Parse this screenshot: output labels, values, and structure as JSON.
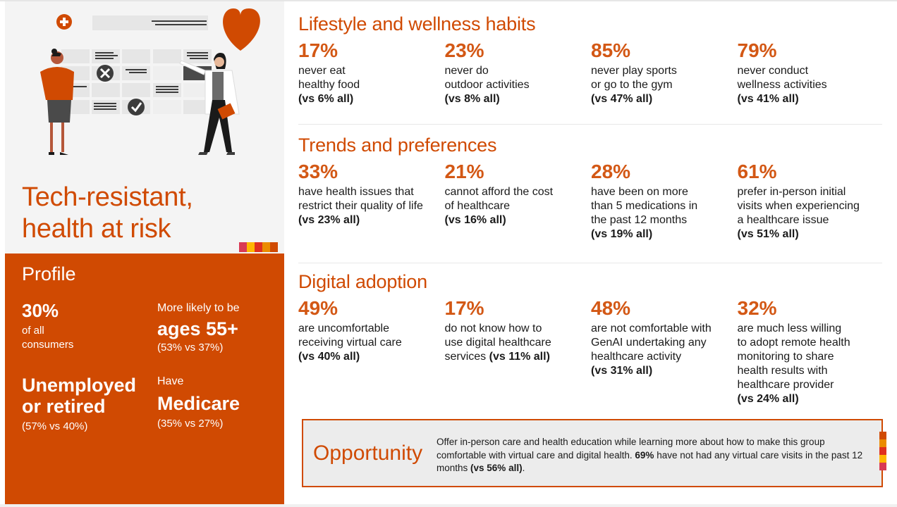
{
  "persona": {
    "title_line1": "Tech-resistant,",
    "title_line2": "health at risk",
    "illustration": "doctor-patient-calendar-illustration"
  },
  "profile": {
    "title": "Profile",
    "share": {
      "value": "30%",
      "line1": "of all",
      "line2": "consumers"
    },
    "age": {
      "lead": "More likely to be",
      "value": "ages 55+",
      "compare": "(53% vs 37%)"
    },
    "employment": {
      "line1": "Unemployed",
      "line2": "or retired",
      "compare": "(57% vs 40%)"
    },
    "insurance": {
      "lead": "Have",
      "value": "Medicare",
      "compare": "(35% vs 27%)"
    }
  },
  "colors": {
    "brand_orange": "#d04a02",
    "accent_pink": "#d93954",
    "accent_yellow": "#ffb600",
    "accent_red": "#e0301e",
    "accent_amber": "#eb8c00",
    "panel_gray": "#f4f4f4"
  },
  "sections": [
    {
      "title": "Lifestyle and wellness habits",
      "stats": [
        {
          "pct": "17%",
          "lines": [
            "never eat",
            "healthy food"
          ],
          "compare": "(vs 6% all)"
        },
        {
          "pct": "23%",
          "lines": [
            "never do",
            "outdoor activities"
          ],
          "compare": "(vs 8% all)"
        },
        {
          "pct": "85%",
          "lines": [
            "never play sports",
            "or go to the gym"
          ],
          "compare": "(vs 47% all)"
        },
        {
          "pct": "79%",
          "lines": [
            "never conduct",
            "wellness activities"
          ],
          "compare": "(vs 41% all)"
        }
      ]
    },
    {
      "title": "Trends and preferences",
      "stats": [
        {
          "pct": "33%",
          "lines": [
            "have health issues that",
            "restrict their quality of life"
          ],
          "compare": "(vs 23% all)"
        },
        {
          "pct": "21%",
          "lines": [
            "cannot afford the cost",
            "of healthcare"
          ],
          "compare": "(vs 16% all)"
        },
        {
          "pct": "28%",
          "lines": [
            "have been on more",
            "than 5 medications in",
            "the past 12 months"
          ],
          "compare": "(vs 19% all)"
        },
        {
          "pct": "61%",
          "lines": [
            "prefer in-person initial",
            "visits when experiencing",
            "a healthcare issue"
          ],
          "compare": "(vs 51% all)"
        }
      ]
    },
    {
      "title": "Digital adoption",
      "stats": [
        {
          "pct": "49%",
          "lines": [
            "are uncomfortable",
            "receiving virtual care"
          ],
          "compare": "(vs 40% all)"
        },
        {
          "pct": "17%",
          "lines": [
            "do not know how to",
            "use digital healthcare"
          ],
          "tail": "services ",
          "compare": "(vs 11% all)"
        },
        {
          "pct": "48%",
          "lines": [
            "are not comfortable with",
            "GenAI undertaking any",
            "healthcare activity"
          ],
          "compare": "(vs 31% all)"
        },
        {
          "pct": "32%",
          "lines": [
            "are much less willing",
            "to adopt remote health",
            "monitoring to share",
            "health results with",
            "healthcare provider"
          ],
          "compare": "(vs 24% all)"
        }
      ]
    }
  ],
  "opportunity": {
    "title": "Opportunity",
    "text_part1": "Offer in-person care and health education while learning more about how to make this group comfortable with virtual care and digital health. ",
    "text_bold1": "69%",
    "text_part2": " have not had any virtual care visits in the past 12 months ",
    "text_bold2": "(vs 56% all)",
    "text_part3": "."
  }
}
